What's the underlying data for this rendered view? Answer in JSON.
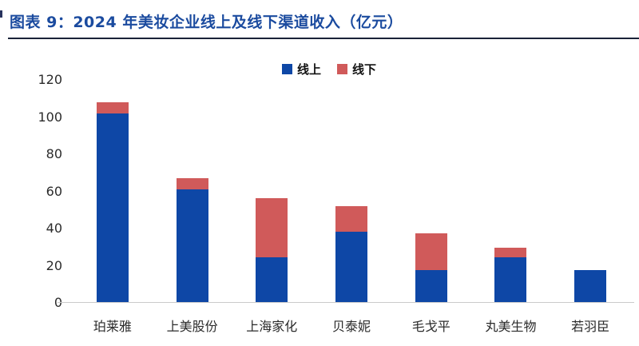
{
  "page": {
    "title": "图表 9：2024 年美妆企业线上及线下渠道收入（亿元）"
  },
  "legend": [
    {
      "label": "线上",
      "color": "#0E47A6"
    },
    {
      "label": "线下",
      "color": "#D05A5A"
    }
  ],
  "chart_data": {
    "type": "bar",
    "stacked": true,
    "title": "2024 年美妆企业线上及线下渠道收入（亿元）",
    "unit": "亿元",
    "categories": [
      "珀莱雅",
      "上美股份",
      "上海家化",
      "贝泰妮",
      "毛戈平",
      "丸美生物",
      "若羽臣"
    ],
    "series": [
      {
        "name": "线上",
        "color": "#0E47A6",
        "values": [
          102,
          61,
          24.5,
          38.5,
          17.5,
          24.5,
          17.5
        ]
      },
      {
        "name": "线下",
        "color": "#D05A5A",
        "values": [
          6,
          6,
          32,
          13.5,
          20,
          5,
          0
        ]
      }
    ],
    "xlabel": "",
    "ylabel": "",
    "ylim": [
      0,
      120
    ],
    "yticks": [
      0,
      20,
      40,
      60,
      80,
      100,
      120
    ],
    "legend_position": "top-center",
    "grid": false
  }
}
